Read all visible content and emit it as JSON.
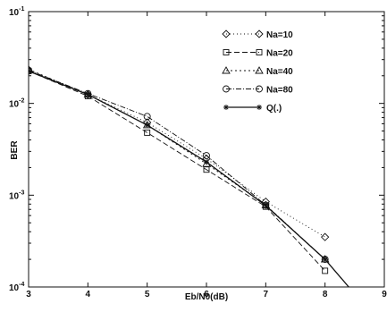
{
  "chart_data": {
    "type": "line",
    "title": "",
    "xlabel": "Eb/N0(dB)",
    "ylabel": "BER",
    "xlim": [
      3,
      9
    ],
    "ylim_log10": [
      -4,
      -1
    ],
    "y_scale": "log",
    "grid": false,
    "legend_position": "top-right",
    "x_ticks": [
      "3",
      "4",
      "5",
      "6",
      "7",
      "8",
      "9"
    ],
    "y_ticks": [
      {
        "base": "10",
        "exp": "-1",
        "log10": -1
      },
      {
        "base": "10",
        "exp": "-2",
        "log10": -2
      },
      {
        "base": "10",
        "exp": "-3",
        "log10": -3
      },
      {
        "base": "10",
        "exp": "-4",
        "log10": -4
      }
    ],
    "series": [
      {
        "name": "Na=10",
        "marker": "diamond",
        "dash": "1,3",
        "x": [
          3,
          4,
          5,
          6,
          7,
          8
        ],
        "y": [
          0.0225,
          0.0125,
          0.0062,
          0.0025,
          0.00085,
          0.00035
        ]
      },
      {
        "name": "Na=20",
        "marker": "square",
        "dash": "6,3",
        "x": [
          3,
          4,
          5,
          6,
          7,
          8
        ],
        "y": [
          0.0225,
          0.012,
          0.0048,
          0.0019,
          0.00075,
          0.00015
        ]
      },
      {
        "name": "Na=40",
        "marker": "triangle",
        "dash": "2,3",
        "x": [
          3,
          4,
          5,
          6,
          7,
          8
        ],
        "y": [
          0.0235,
          0.0125,
          0.0058,
          0.0022,
          0.00078,
          0.0002
        ]
      },
      {
        "name": "Na=80",
        "marker": "circle",
        "dash": "6,2,1,2",
        "x": [
          3,
          4,
          5,
          6,
          7,
          8
        ],
        "y": [
          0.023,
          0.0128,
          0.0072,
          0.0027,
          0.00078,
          0.0002
        ]
      },
      {
        "name": "Q(.)",
        "marker": "star",
        "dash": "",
        "x": [
          3,
          4,
          5,
          6,
          7,
          8,
          8.4
        ],
        "y": [
          0.0225,
          0.0125,
          0.0058,
          0.0023,
          0.00077,
          0.0002,
          0.0001
        ]
      }
    ]
  }
}
